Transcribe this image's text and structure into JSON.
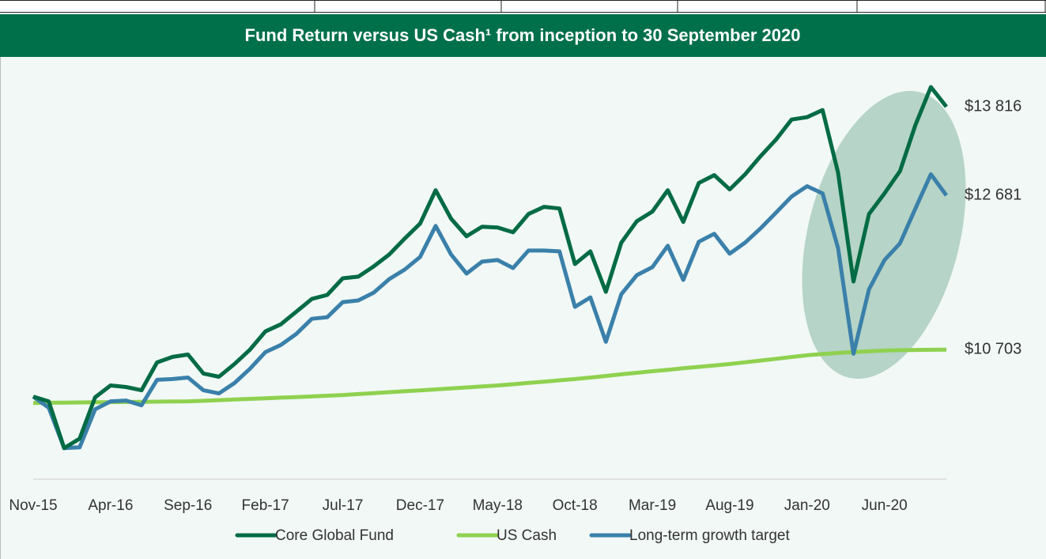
{
  "chart_data": {
    "type": "line",
    "title": "Fund Return versus US Cash¹ from inception to 30 September 2020",
    "categories": [
      "Nov-15",
      null,
      null,
      null,
      null,
      "Apr-16",
      null,
      null,
      null,
      null,
      "Sep-16",
      null,
      null,
      null,
      null,
      "Feb-17",
      null,
      null,
      null,
      null,
      "Jul-17",
      null,
      null,
      null,
      null,
      "Dec-17",
      null,
      null,
      null,
      null,
      "May-18",
      null,
      null,
      null,
      null,
      "Oct-18",
      null,
      null,
      null,
      null,
      "Mar-19",
      null,
      null,
      null,
      null,
      "Aug-19",
      null,
      null,
      null,
      null,
      "Jan-20",
      null,
      null,
      null,
      null,
      "Jun-20",
      null,
      null,
      null,
      null
    ],
    "series": [
      {
        "name": "Core Global Fund",
        "color": "#006b44",
        "values": [
          10103,
          10042,
          9442,
          9564,
          10093,
          10245,
          10225,
          10184,
          10540,
          10611,
          10642,
          10398,
          10357,
          10520,
          10703,
          10937,
          11028,
          11191,
          11354,
          11405,
          11618,
          11639,
          11771,
          11923,
          12127,
          12320,
          12747,
          12381,
          12157,
          12279,
          12269,
          12208,
          12442,
          12534,
          12513,
          11801,
          11964,
          11445,
          12076,
          12351,
          12473,
          12747,
          12340,
          12839,
          12940,
          12757,
          12951,
          13184,
          13398,
          13652,
          13683,
          13774,
          12971,
          11578,
          12442,
          12706,
          12991,
          13581,
          14069,
          13816
        ],
        "value_labels": [
          null,
          null,
          null,
          null,
          null,
          null,
          null,
          null,
          null,
          null,
          null,
          null,
          null,
          null,
          null,
          null,
          null,
          null,
          null,
          null,
          null,
          null,
          null,
          null,
          null,
          null,
          null,
          null,
          null,
          null,
          null,
          null,
          null,
          null,
          null,
          null,
          null,
          null,
          null,
          null,
          null,
          null,
          null,
          null,
          null,
          null,
          null,
          null,
          null,
          null,
          null,
          null,
          null,
          null,
          null,
          null,
          null,
          null,
          null,
          "$13 816"
        ]
      },
      {
        "name": "US Cash",
        "color": "#8fd14f",
        "values": [
          10022,
          10024,
          10026,
          10028,
          10030,
          10032,
          10034,
          10036,
          10038,
          10040,
          10042,
          10049,
          10057,
          10065,
          10073,
          10081,
          10089,
          10097,
          10105,
          10114,
          10123,
          10135,
          10147,
          10159,
          10171,
          10183,
          10195,
          10207,
          10220,
          10232,
          10245,
          10261,
          10278,
          10294,
          10311,
          10327,
          10347,
          10367,
          10388,
          10408,
          10428,
          10446,
          10465,
          10483,
          10502,
          10520,
          10542,
          10565,
          10587,
          10610,
          10632,
          10648,
          10662,
          10674,
          10684,
          10692,
          10697,
          10700,
          10702,
          10703
        ],
        "value_labels": [
          null,
          null,
          null,
          null,
          null,
          null,
          null,
          null,
          null,
          null,
          null,
          null,
          null,
          null,
          null,
          null,
          null,
          null,
          null,
          null,
          null,
          null,
          null,
          null,
          null,
          null,
          null,
          null,
          null,
          null,
          null,
          null,
          null,
          null,
          null,
          null,
          null,
          null,
          null,
          null,
          null,
          null,
          null,
          null,
          null,
          null,
          null,
          null,
          null,
          null,
          null,
          null,
          null,
          null,
          null,
          null,
          null,
          null,
          null,
          "$10 703"
        ]
      },
      {
        "name": "Long-term growth target",
        "color": "#3a80aa",
        "values": [
          10103,
          9961,
          9442,
          9452,
          9940,
          10042,
          10052,
          9991,
          10317,
          10327,
          10347,
          10184,
          10143,
          10276,
          10459,
          10672,
          10764,
          10906,
          11099,
          11120,
          11313,
          11334,
          11435,
          11608,
          11730,
          11893,
          12290,
          11923,
          11679,
          11832,
          11852,
          11750,
          11974,
          11974,
          11964,
          11252,
          11374,
          10805,
          11415,
          11659,
          11761,
          12035,
          11598,
          12086,
          12188,
          11934,
          12076,
          12259,
          12462,
          12666,
          12798,
          12706,
          12005,
          10652,
          11476,
          11852,
          12066,
          12513,
          12951,
          12681
        ],
        "value_labels": [
          null,
          null,
          null,
          null,
          null,
          null,
          null,
          null,
          null,
          null,
          null,
          null,
          null,
          null,
          null,
          null,
          null,
          null,
          null,
          null,
          null,
          null,
          null,
          null,
          null,
          null,
          null,
          null,
          null,
          null,
          null,
          null,
          null,
          null,
          null,
          null,
          null,
          null,
          null,
          null,
          null,
          null,
          null,
          null,
          null,
          null,
          null,
          null,
          null,
          null,
          null,
          null,
          null,
          null,
          null,
          null,
          null,
          null,
          null,
          "$12 681"
        ]
      }
    ],
    "ylim": [
      9045,
      14100
    ],
    "legend": "bottom"
  }
}
